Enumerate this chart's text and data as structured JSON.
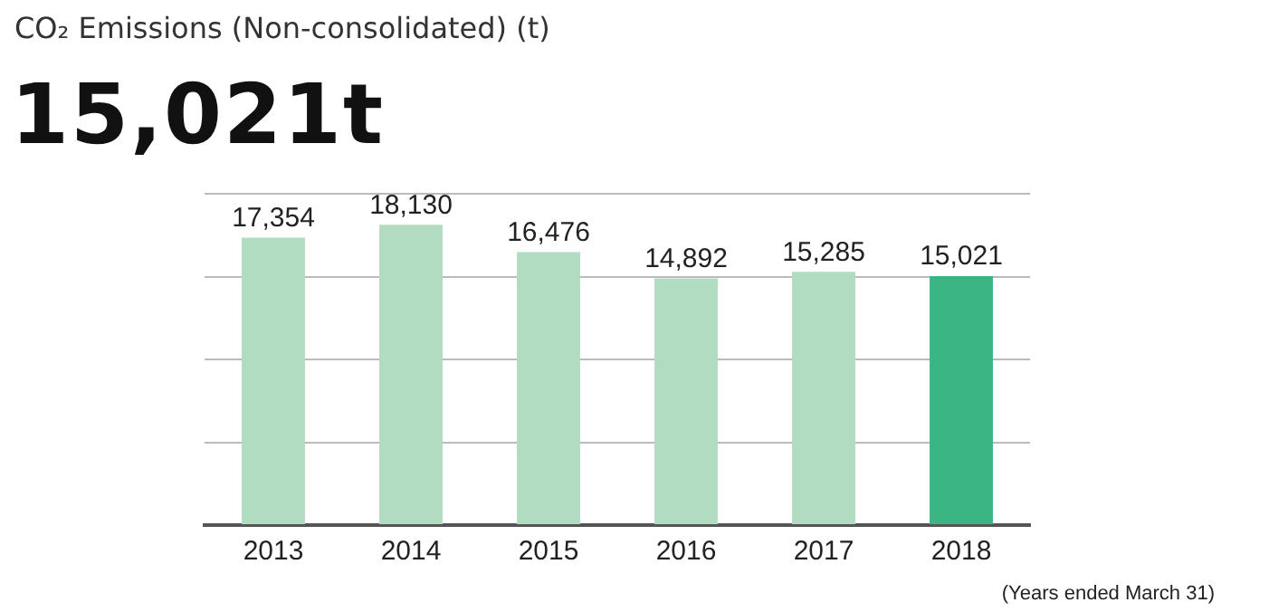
{
  "chart_data": {
    "type": "bar",
    "title": "CO₂ Emissions (Non-consolidated) (t)",
    "subtitle": "15,021t",
    "categories": [
      "2013",
      "2014",
      "2015",
      "2016",
      "2017",
      "2018"
    ],
    "values": [
      17354,
      18130,
      16476,
      14892,
      15285,
      15021
    ],
    "colors": [
      "#b2dcc2",
      "#b2dcc2",
      "#b2dcc2",
      "#b2dcc2",
      "#b2dcc2",
      "#3bb583"
    ],
    "value_labels": [
      "17,354",
      "18,130",
      "16,476",
      "14,892",
      "15,285",
      "15,021"
    ],
    "grid": "y",
    "tick_labels": "x",
    "legend": false,
    "annotations": [
      "(Years ended March 31)"
    ]
  }
}
